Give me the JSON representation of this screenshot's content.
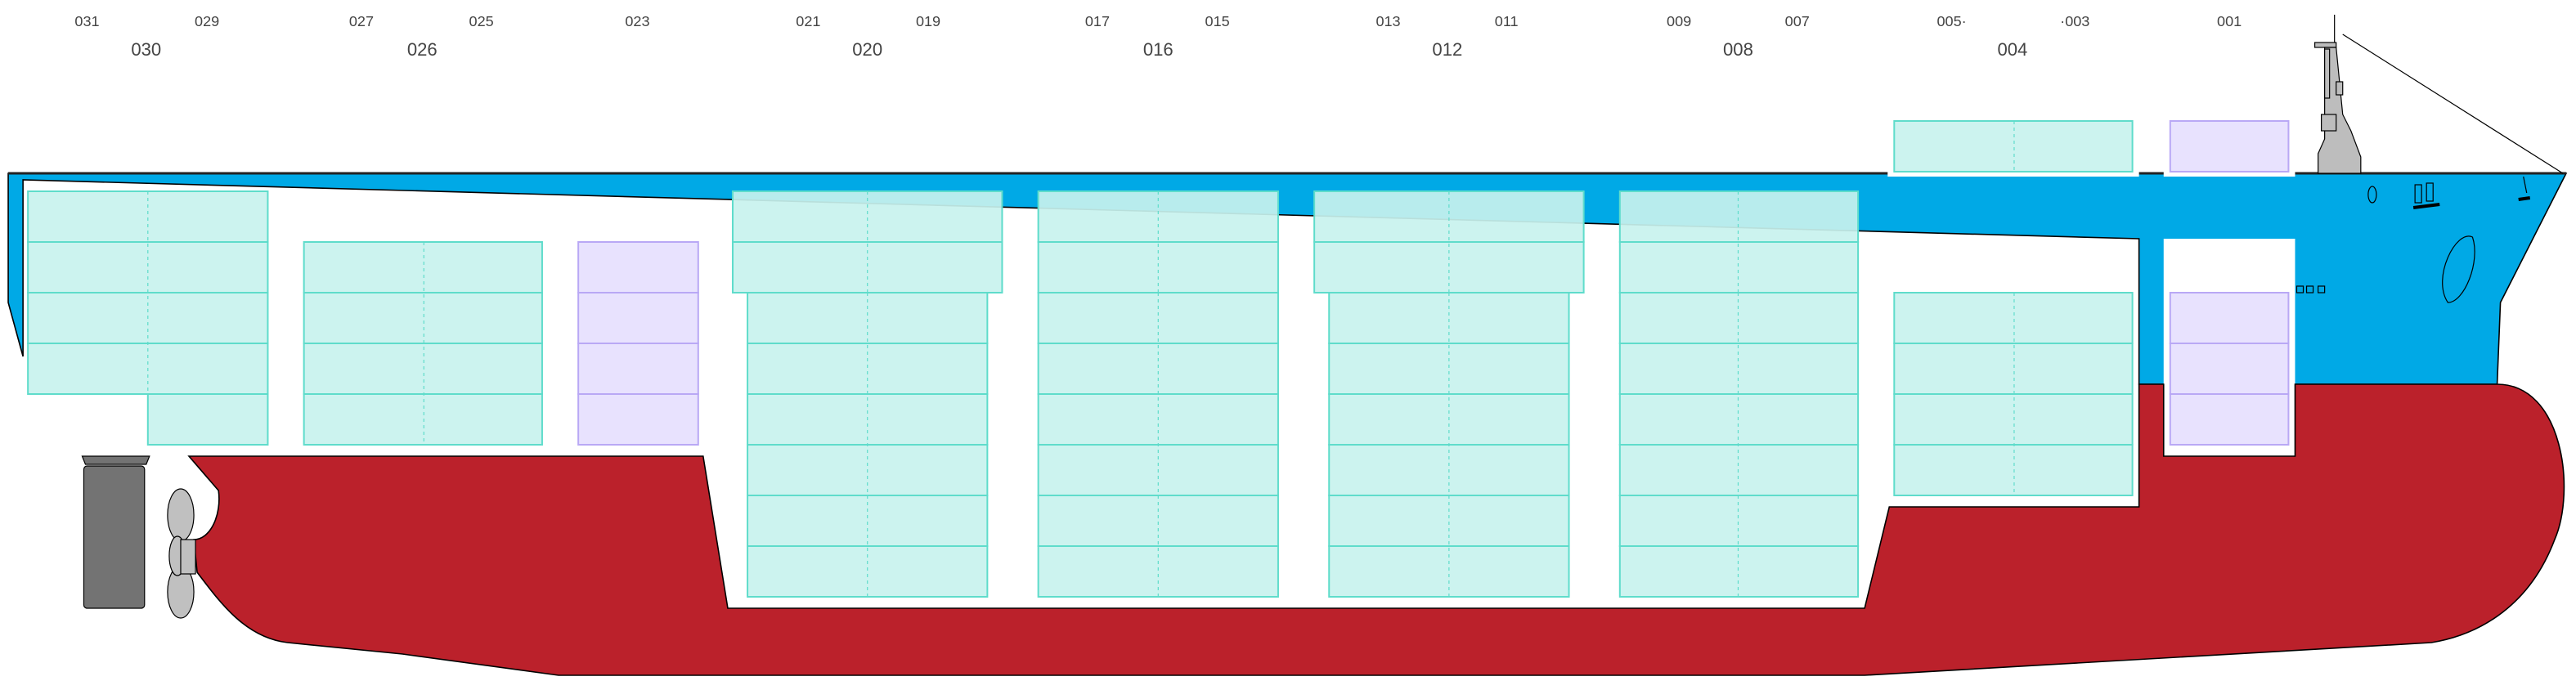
{
  "colors": {
    "upper_hull": "#00a9e6",
    "lower_hull": "#bb212b",
    "cell_standard_fill": "#c8f2ee",
    "cell_standard_stroke": "#5fdccb",
    "cell_reefer_fill": "#e6e0fe",
    "cell_reefer_stroke": "#b9a8f5",
    "rudder": "#737373",
    "propeller": "#c0c0c0",
    "superstructure": "#bdbdbd"
  },
  "odd_bay_labels": [
    "031",
    "029",
    "027",
    "025",
    "023",
    "021",
    "019",
    "017",
    "015",
    "013",
    "011",
    "009",
    "007",
    "005·",
    "·003",
    "001"
  ],
  "even_bay_labels": [
    "030",
    "026",
    "020",
    "016",
    "012",
    "008",
    "004"
  ],
  "bays": [
    {
      "bay": "030",
      "type": "standard",
      "deck_tiers": 4,
      "extra_tiers": 1,
      "hold_tiers": 0
    },
    {
      "bay": "026",
      "type": "standard",
      "deck_tiers": 4,
      "hold_tiers": 0
    },
    {
      "bay": "023",
      "type": "reefer",
      "deck_tiers": 4,
      "hold_tiers": 0
    },
    {
      "bay": "020",
      "type": "standard",
      "deck_tiers": 2,
      "hold_tiers": 6
    },
    {
      "bay": "016",
      "type": "standard",
      "deck_tiers": 2,
      "hold_tiers": 6
    },
    {
      "bay": "012",
      "type": "standard",
      "deck_tiers": 2,
      "hold_tiers": 6
    },
    {
      "bay": "008",
      "type": "standard",
      "deck_tiers": 2,
      "hold_tiers": 6
    },
    {
      "bay": "004",
      "type": "standard",
      "deck_tiers": 1,
      "hold_tiers": 4
    },
    {
      "bay": "001",
      "type": "reefer",
      "deck_tiers": 1,
      "hold_tiers": 3
    }
  ]
}
